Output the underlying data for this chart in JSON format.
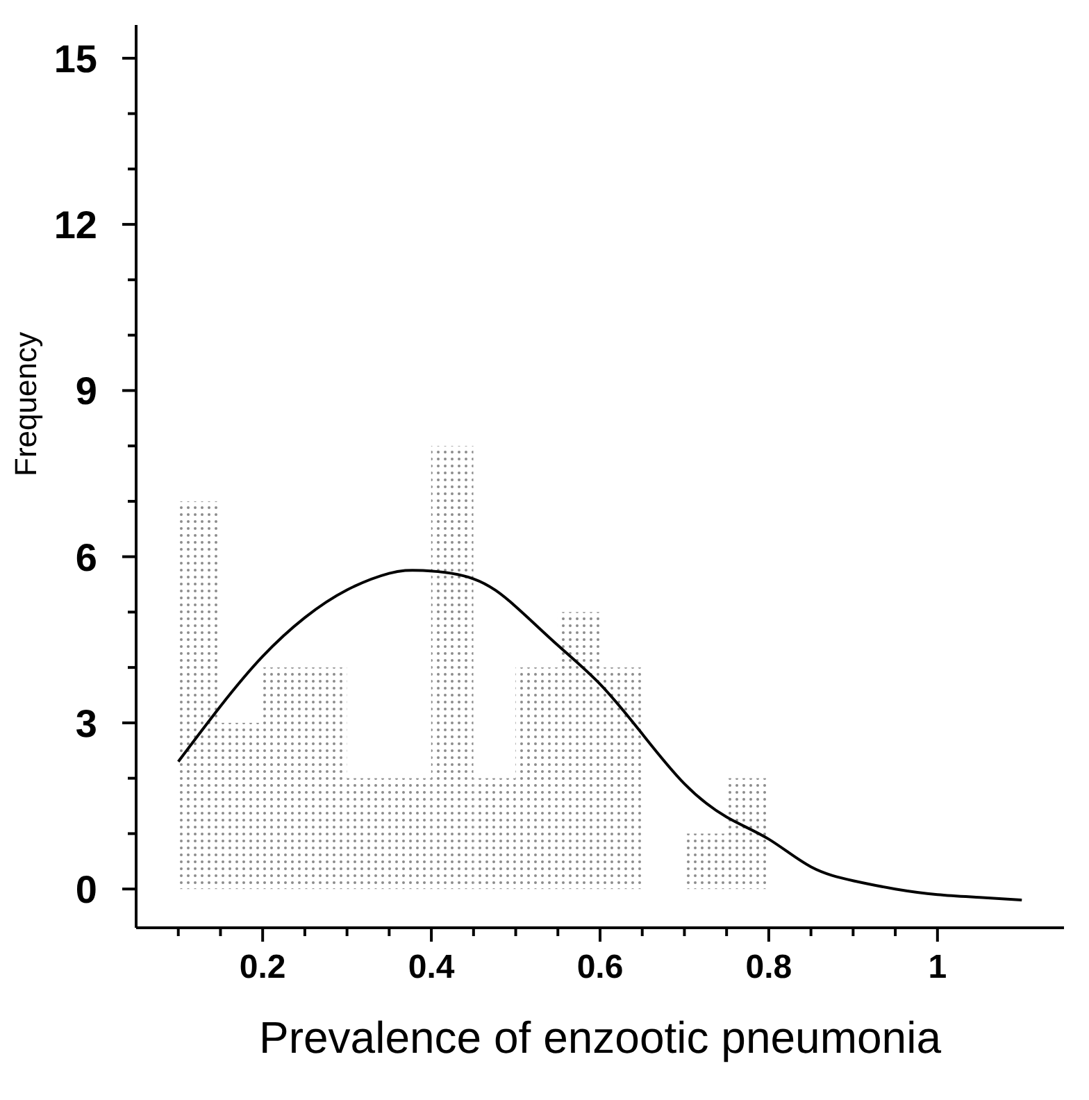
{
  "chart_data": {
    "type": "histogram",
    "xlabel": "Prevalence of enzootic pneumonia",
    "ylabel": "Frequency",
    "bins": [
      0.1,
      0.15,
      0.2,
      0.25,
      0.3,
      0.35,
      0.4,
      0.45,
      0.5,
      0.55,
      0.6,
      0.65,
      0.7,
      0.75,
      0.8
    ],
    "values": [
      7,
      3,
      4,
      4,
      2,
      2,
      8,
      2,
      4,
      5,
      4,
      0,
      1,
      2
    ],
    "color": "#8c8c8c",
    "series": [
      {
        "type": "line",
        "color": "#000000",
        "x": [
          0.1,
          0.15,
          0.2,
          0.25,
          0.3,
          0.35,
          0.39,
          0.45,
          0.5,
          0.55,
          0.6,
          0.65,
          0.7,
          0.75,
          0.8,
          0.85,
          0.9,
          0.95,
          1.0,
          1.05,
          1.1
        ],
        "values": [
          2.3,
          3.3,
          4.2,
          4.9,
          5.4,
          5.7,
          5.75,
          5.6,
          5.1,
          4.4,
          3.7,
          2.8,
          1.9,
          1.3,
          0.9,
          0.4,
          0.15,
          0.0,
          -0.1,
          -0.15,
          -0.2
        ]
      }
    ],
    "xlim": [
      0.05,
      1.15
    ],
    "xticks": [
      {
        "value": 0.1,
        "label": null
      },
      {
        "value": 0.15,
        "label": null
      },
      0.2,
      {
        "value": 0.25,
        "label": null
      },
      {
        "value": 0.3,
        "label": null
      },
      {
        "value": 0.35,
        "label": null
      },
      0.4,
      {
        "value": 0.45,
        "label": null
      },
      {
        "value": 0.5,
        "label": null
      },
      {
        "value": 0.55,
        "label": null
      },
      0.6,
      {
        "value": 0.65,
        "label": null
      },
      {
        "value": 0.7,
        "label": null
      },
      {
        "value": 0.75,
        "label": null
      },
      0.8,
      {
        "value": 0.85,
        "label": null
      },
      {
        "value": 0.9,
        "label": null
      },
      {
        "value": 0.95,
        "label": null
      },
      1
    ],
    "ylim": [
      -0.7,
      15.6
    ],
    "yticks": [
      0,
      {
        "value": 1,
        "label": null
      },
      {
        "value": 2,
        "label": null
      },
      3,
      {
        "value": 4,
        "label": null
      },
      {
        "value": 5,
        "label": null
      },
      6,
      {
        "value": 7,
        "label": null
      },
      {
        "value": 8,
        "label": null
      },
      9,
      {
        "value": 10,
        "label": null
      },
      {
        "value": 11,
        "label": null
      },
      12,
      {
        "value": 13,
        "label": null
      },
      {
        "value": 14,
        "label": null
      },
      15
    ],
    "grid": false,
    "legend": false,
    "marker": "none",
    "line_style": "solid"
  }
}
